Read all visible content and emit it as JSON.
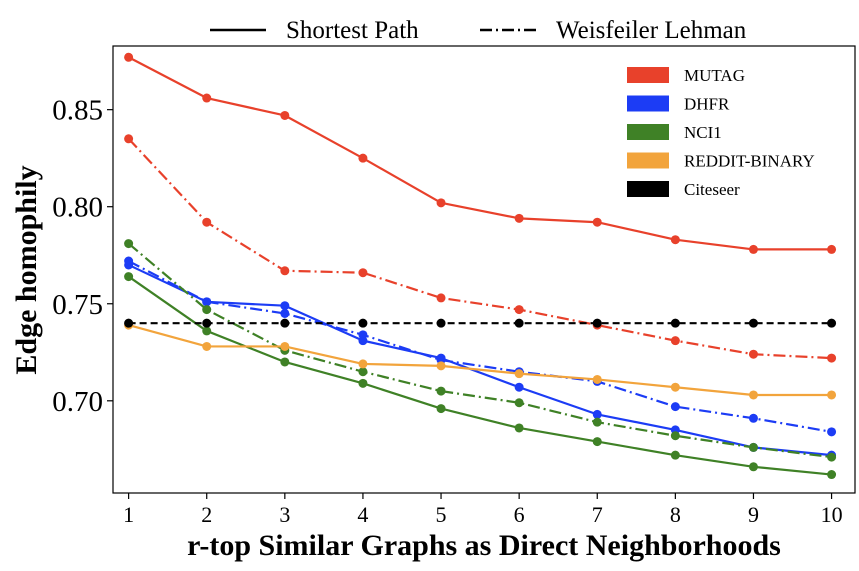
{
  "chart_data": {
    "type": "line",
    "xlabel": "r-top Similar Graphs as Direct Neighborhoods",
    "ylabel": "Edge homophily",
    "x": [
      1,
      2,
      3,
      4,
      5,
      6,
      7,
      8,
      9,
      10
    ],
    "xticks": [
      "1",
      "2",
      "3",
      "4",
      "5",
      "6",
      "7",
      "8",
      "9",
      "10"
    ],
    "yticks": [
      "0.70",
      "0.75",
      "0.80",
      "0.85"
    ],
    "xlim": [
      0.8,
      10.3
    ],
    "ylim": [
      0.6525,
      0.8828
    ],
    "grid": false,
    "legend_top": {
      "placement": "top-center",
      "entries": [
        {
          "label": "Shortest Path",
          "style": "solid"
        },
        {
          "label": "Weisfeiler Lehman",
          "style": "dashdot"
        }
      ]
    },
    "legend_datasets": {
      "placement": "top-right",
      "entries": [
        {
          "label": "MUTAG",
          "color": "#e8412b"
        },
        {
          "label": "DHFR",
          "color": "#1c3cf5"
        },
        {
          "label": "NCI1",
          "color": "#3f8126"
        },
        {
          "label": "REDDIT-BINARY",
          "color": "#f2a43c"
        },
        {
          "label": "Citeseer",
          "color": "#000000"
        }
      ]
    },
    "series": [
      {
        "dataset": "MUTAG",
        "method": "Shortest Path",
        "color": "#e8412b",
        "style": "solid",
        "values": [
          0.877,
          0.856,
          0.847,
          0.825,
          0.802,
          0.794,
          0.792,
          0.783,
          0.778,
          0.778
        ]
      },
      {
        "dataset": "MUTAG",
        "method": "Weisfeiler Lehman",
        "color": "#e8412b",
        "style": "dashdot",
        "values": [
          0.835,
          0.792,
          0.767,
          0.766,
          0.753,
          0.747,
          0.739,
          0.731,
          0.724,
          0.722
        ]
      },
      {
        "dataset": "DHFR",
        "method": "Shortest Path",
        "color": "#1c3cf5",
        "style": "solid",
        "values": [
          0.77,
          0.751,
          0.749,
          0.731,
          0.722,
          0.707,
          0.693,
          0.685,
          0.676,
          0.672
        ]
      },
      {
        "dataset": "DHFR",
        "method": "Weisfeiler Lehman",
        "color": "#1c3cf5",
        "style": "dashdot",
        "values": [
          0.772,
          0.751,
          0.745,
          0.734,
          0.721,
          0.715,
          0.71,
          0.697,
          0.691,
          0.684
        ]
      },
      {
        "dataset": "NCI1",
        "method": "Shortest Path",
        "color": "#3f8126",
        "style": "solid",
        "values": [
          0.764,
          0.736,
          0.72,
          0.709,
          0.696,
          0.686,
          0.679,
          0.672,
          0.666,
          0.662
        ]
      },
      {
        "dataset": "NCI1",
        "method": "Weisfeiler Lehman",
        "color": "#3f8126",
        "style": "dashdot",
        "values": [
          0.781,
          0.747,
          0.726,
          0.715,
          0.705,
          0.699,
          0.689,
          0.682,
          0.676,
          0.671
        ]
      },
      {
        "dataset": "REDDIT-BINARY",
        "method": "Shortest Path",
        "color": "#f2a43c",
        "style": "solid",
        "values": [
          0.739,
          0.728,
          0.728,
          0.719,
          0.718,
          0.714,
          0.711,
          0.707,
          0.703,
          0.703
        ]
      },
      {
        "dataset": "Citeseer",
        "method": "Shortest Path",
        "color": "#000000",
        "style": "dashed",
        "values": [
          0.74,
          0.74,
          0.74,
          0.74,
          0.74,
          0.74,
          0.74,
          0.74,
          0.74,
          0.74
        ]
      }
    ]
  }
}
